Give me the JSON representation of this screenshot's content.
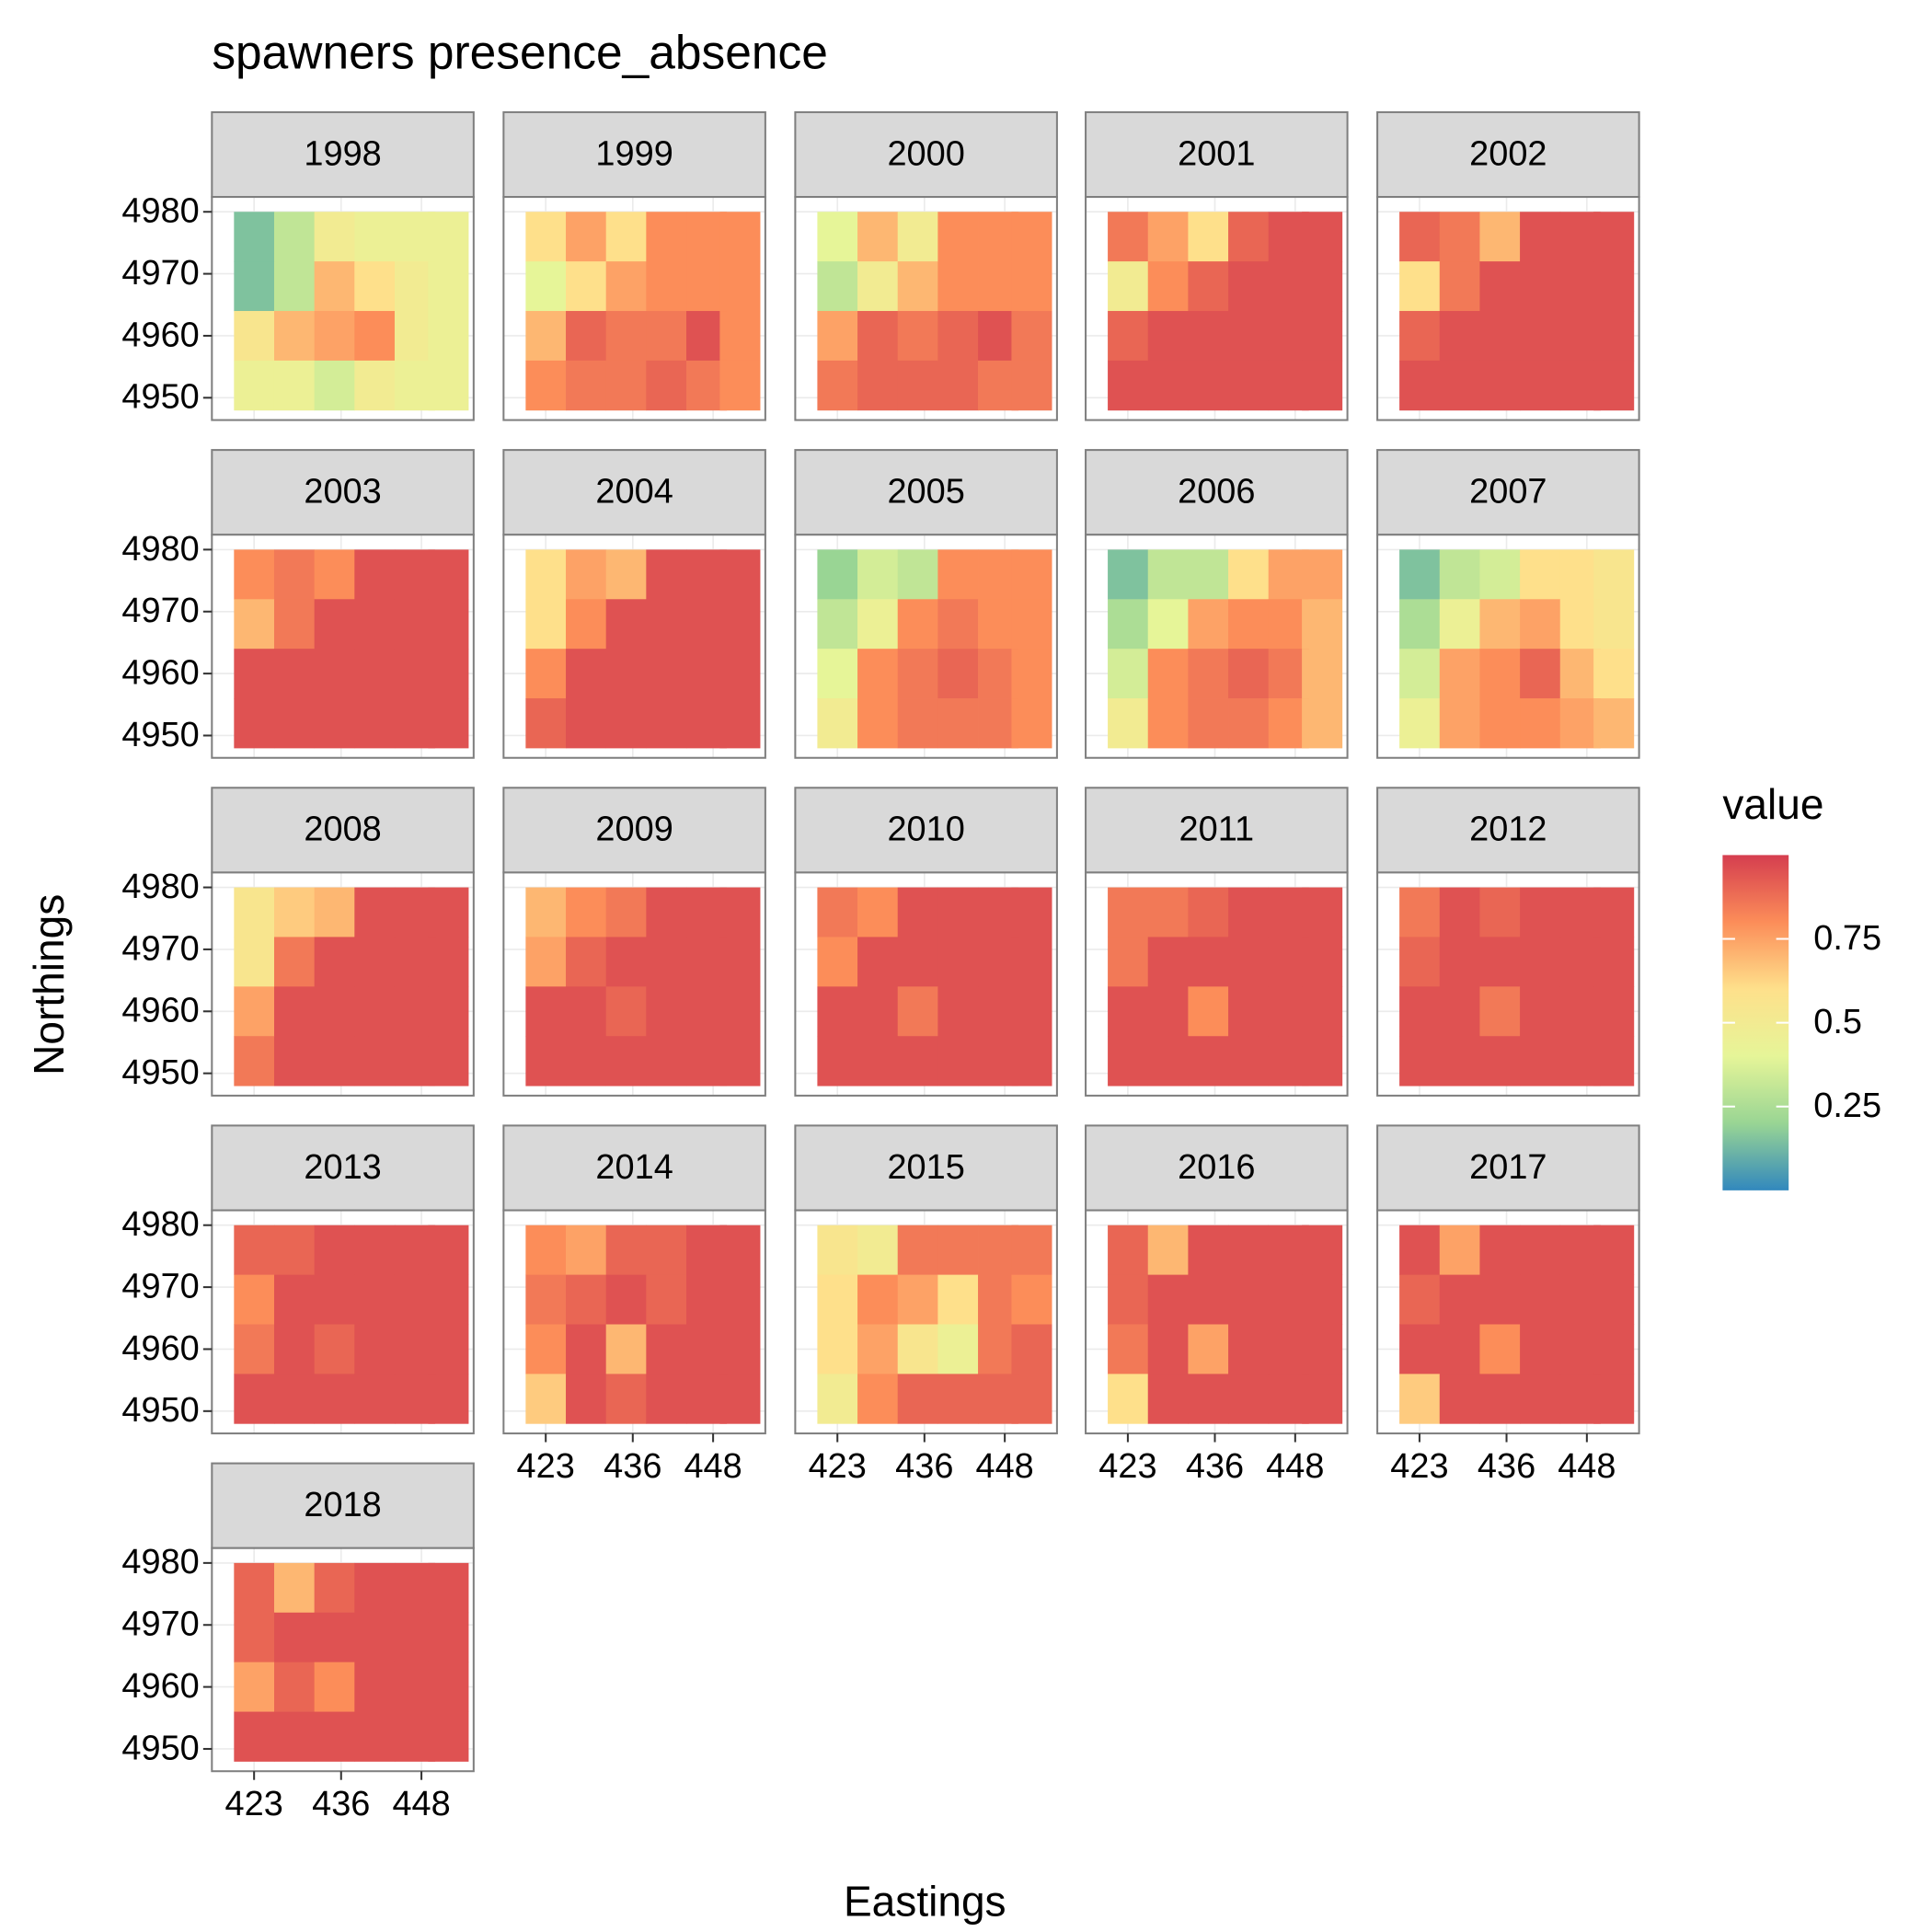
{
  "chart_data": {
    "type": "facet_tile",
    "title": "spawners presence_absence",
    "x_label": "Eastings",
    "y_label": "Northings",
    "xlim": [
      416.7,
      455.8
    ],
    "xticks": [
      423,
      436,
      448
    ],
    "ylim": [
      4946.4,
      4982.4
    ],
    "yticks": [
      4950,
      4960,
      4970,
      4980
    ],
    "grid": true,
    "cell_x": [
      423,
      429,
      435,
      441,
      447,
      452
    ],
    "cell_y": [
      4976,
      4968,
      4960,
      4952
    ],
    "cell_size": [
      6,
      8
    ],
    "legend": {
      "title": "value",
      "clim": [
        0,
        1
      ],
      "ticks": [
        0.25,
        0.5,
        0.75
      ],
      "palette": [
        "#3288bd",
        "#99d594",
        "#e6f598",
        "#fee08b",
        "#fc8d59",
        "#d53e4f"
      ]
    },
    "panels": [
      {
        "name": "1998",
        "values": [
          [
            0.15,
            0.3,
            0.5,
            0.45,
            0.45,
            0.45
          ],
          [
            0.15,
            0.3,
            0.7,
            0.6,
            0.5,
            0.45
          ],
          [
            0.55,
            0.7,
            0.75,
            0.8,
            0.5,
            0.45
          ],
          [
            0.45,
            0.45,
            0.35,
            0.5,
            0.45,
            0.45
          ]
        ]
      },
      {
        "name": "1999",
        "values": [
          [
            0.6,
            0.75,
            0.6,
            0.8,
            0.8,
            0.8
          ],
          [
            0.4,
            0.6,
            0.75,
            0.8,
            0.8,
            0.8
          ],
          [
            0.7,
            0.9,
            0.85,
            0.85,
            0.95,
            0.8
          ],
          [
            0.8,
            0.85,
            0.85,
            0.9,
            0.85,
            0.8
          ]
        ]
      },
      {
        "name": "2000",
        "values": [
          [
            0.4,
            0.7,
            0.5,
            0.8,
            0.8,
            0.8
          ],
          [
            0.3,
            0.5,
            0.7,
            0.8,
            0.8,
            0.8
          ],
          [
            0.75,
            0.9,
            0.85,
            0.9,
            0.95,
            0.85
          ],
          [
            0.85,
            0.9,
            0.9,
            0.9,
            0.85,
            0.85
          ]
        ]
      },
      {
        "name": "2001",
        "values": [
          [
            0.85,
            0.75,
            0.6,
            0.9,
            0.95,
            0.95
          ],
          [
            0.5,
            0.8,
            0.9,
            0.95,
            0.95,
            0.95
          ],
          [
            0.9,
            0.95,
            0.95,
            0.95,
            0.95,
            0.95
          ],
          [
            0.95,
            0.95,
            0.95,
            0.95,
            0.95,
            0.95
          ]
        ]
      },
      {
        "name": "2002",
        "values": [
          [
            0.9,
            0.85,
            0.7,
            0.95,
            0.95,
            0.95
          ],
          [
            0.6,
            0.85,
            0.95,
            0.95,
            0.95,
            0.95
          ],
          [
            0.9,
            0.95,
            0.95,
            0.95,
            0.95,
            0.95
          ],
          [
            0.95,
            0.95,
            0.95,
            0.95,
            0.95,
            0.95
          ]
        ]
      },
      {
        "name": "2003",
        "values": [
          [
            0.8,
            0.85,
            0.8,
            0.95,
            0.95,
            0.95
          ],
          [
            0.7,
            0.85,
            0.95,
            0.95,
            0.95,
            0.95
          ],
          [
            0.95,
            0.95,
            0.95,
            0.95,
            0.95,
            0.95
          ],
          [
            0.95,
            0.95,
            0.95,
            0.95,
            0.95,
            0.95
          ]
        ]
      },
      {
        "name": "2004",
        "values": [
          [
            0.6,
            0.75,
            0.7,
            0.95,
            0.95,
            0.95
          ],
          [
            0.6,
            0.8,
            0.95,
            0.95,
            0.95,
            0.95
          ],
          [
            0.8,
            0.95,
            0.95,
            0.95,
            0.95,
            0.95
          ],
          [
            0.9,
            0.95,
            0.95,
            0.95,
            0.95,
            0.95
          ]
        ]
      },
      {
        "name": "2005",
        "values": [
          [
            0.2,
            0.35,
            0.3,
            0.8,
            0.8,
            0.8
          ],
          [
            0.3,
            0.45,
            0.8,
            0.85,
            0.8,
            0.8
          ],
          [
            0.4,
            0.8,
            0.85,
            0.9,
            0.85,
            0.8
          ],
          [
            0.5,
            0.8,
            0.85,
            0.85,
            0.85,
            0.8
          ]
        ]
      },
      {
        "name": "2006",
        "values": [
          [
            0.15,
            0.3,
            0.3,
            0.6,
            0.75,
            0.75
          ],
          [
            0.25,
            0.4,
            0.75,
            0.8,
            0.8,
            0.7
          ],
          [
            0.35,
            0.8,
            0.85,
            0.9,
            0.85,
            0.7
          ],
          [
            0.5,
            0.8,
            0.85,
            0.85,
            0.8,
            0.7
          ]
        ]
      },
      {
        "name": "2007",
        "values": [
          [
            0.15,
            0.3,
            0.35,
            0.6,
            0.6,
            0.55
          ],
          [
            0.25,
            0.45,
            0.7,
            0.75,
            0.6,
            0.55
          ],
          [
            0.35,
            0.75,
            0.8,
            0.9,
            0.7,
            0.6
          ],
          [
            0.45,
            0.75,
            0.8,
            0.8,
            0.75,
            0.7
          ]
        ]
      },
      {
        "name": "2008",
        "values": [
          [
            0.55,
            0.65,
            0.7,
            0.95,
            0.95,
            0.95
          ],
          [
            0.55,
            0.85,
            0.95,
            0.95,
            0.95,
            0.95
          ],
          [
            0.75,
            0.95,
            0.95,
            0.95,
            0.95,
            0.95
          ],
          [
            0.85,
            0.95,
            0.95,
            0.95,
            0.95,
            0.95
          ]
        ]
      },
      {
        "name": "2009",
        "values": [
          [
            0.7,
            0.8,
            0.85,
            0.95,
            0.95,
            0.95
          ],
          [
            0.75,
            0.9,
            0.95,
            0.95,
            0.95,
            0.95
          ],
          [
            0.95,
            0.95,
            0.9,
            0.95,
            0.95,
            0.95
          ],
          [
            0.95,
            0.95,
            0.95,
            0.95,
            0.95,
            0.95
          ]
        ]
      },
      {
        "name": "2010",
        "values": [
          [
            0.85,
            0.8,
            0.95,
            0.95,
            0.95,
            0.95
          ],
          [
            0.8,
            0.95,
            0.95,
            0.95,
            0.95,
            0.95
          ],
          [
            0.95,
            0.95,
            0.85,
            0.95,
            0.95,
            0.95
          ],
          [
            0.95,
            0.95,
            0.95,
            0.95,
            0.95,
            0.95
          ]
        ]
      },
      {
        "name": "2011",
        "values": [
          [
            0.85,
            0.85,
            0.9,
            0.95,
            0.95,
            0.95
          ],
          [
            0.85,
            0.95,
            0.95,
            0.95,
            0.95,
            0.95
          ],
          [
            0.95,
            0.95,
            0.8,
            0.95,
            0.95,
            0.95
          ],
          [
            0.95,
            0.95,
            0.95,
            0.95,
            0.95,
            0.95
          ]
        ]
      },
      {
        "name": "2012",
        "values": [
          [
            0.85,
            0.95,
            0.9,
            0.95,
            0.95,
            0.95
          ],
          [
            0.9,
            0.95,
            0.95,
            0.95,
            0.95,
            0.95
          ],
          [
            0.95,
            0.95,
            0.85,
            0.95,
            0.95,
            0.95
          ],
          [
            0.95,
            0.95,
            0.95,
            0.95,
            0.95,
            0.95
          ]
        ]
      },
      {
        "name": "2013",
        "values": [
          [
            0.9,
            0.9,
            0.95,
            0.95,
            0.95,
            0.95
          ],
          [
            0.8,
            0.95,
            0.95,
            0.95,
            0.95,
            0.95
          ],
          [
            0.85,
            0.95,
            0.9,
            0.95,
            0.95,
            0.95
          ],
          [
            0.95,
            0.95,
            0.95,
            0.95,
            0.95,
            0.95
          ]
        ]
      },
      {
        "name": "2014",
        "values": [
          [
            0.8,
            0.75,
            0.9,
            0.9,
            0.95,
            0.95
          ],
          [
            0.85,
            0.9,
            0.95,
            0.9,
            0.95,
            0.95
          ],
          [
            0.8,
            0.95,
            0.7,
            0.95,
            0.95,
            0.95
          ],
          [
            0.65,
            0.95,
            0.9,
            0.95,
            0.95,
            0.95
          ]
        ]
      },
      {
        "name": "2015",
        "values": [
          [
            0.55,
            0.5,
            0.85,
            0.85,
            0.85,
            0.85
          ],
          [
            0.6,
            0.8,
            0.75,
            0.6,
            0.85,
            0.8
          ],
          [
            0.6,
            0.75,
            0.55,
            0.45,
            0.85,
            0.9
          ],
          [
            0.5,
            0.8,
            0.9,
            0.9,
            0.9,
            0.9
          ]
        ]
      },
      {
        "name": "2016",
        "values": [
          [
            0.9,
            0.7,
            0.95,
            0.95,
            0.95,
            0.95
          ],
          [
            0.9,
            0.95,
            0.95,
            0.95,
            0.95,
            0.95
          ],
          [
            0.85,
            0.95,
            0.75,
            0.95,
            0.95,
            0.95
          ],
          [
            0.6,
            0.95,
            0.95,
            0.95,
            0.95,
            0.95
          ]
        ]
      },
      {
        "name": "2017",
        "values": [
          [
            0.95,
            0.75,
            0.95,
            0.95,
            0.95,
            0.95
          ],
          [
            0.9,
            0.95,
            0.95,
            0.95,
            0.95,
            0.95
          ],
          [
            0.95,
            0.95,
            0.8,
            0.95,
            0.95,
            0.95
          ],
          [
            0.65,
            0.95,
            0.95,
            0.95,
            0.95,
            0.95
          ]
        ]
      },
      {
        "name": "2018",
        "values": [
          [
            0.9,
            0.7,
            0.9,
            0.95,
            0.95,
            0.95
          ],
          [
            0.9,
            0.95,
            0.95,
            0.95,
            0.95,
            0.95
          ],
          [
            0.75,
            0.9,
            0.8,
            0.95,
            0.95,
            0.95
          ],
          [
            0.95,
            0.95,
            0.95,
            0.95,
            0.95,
            0.95
          ]
        ]
      }
    ]
  }
}
